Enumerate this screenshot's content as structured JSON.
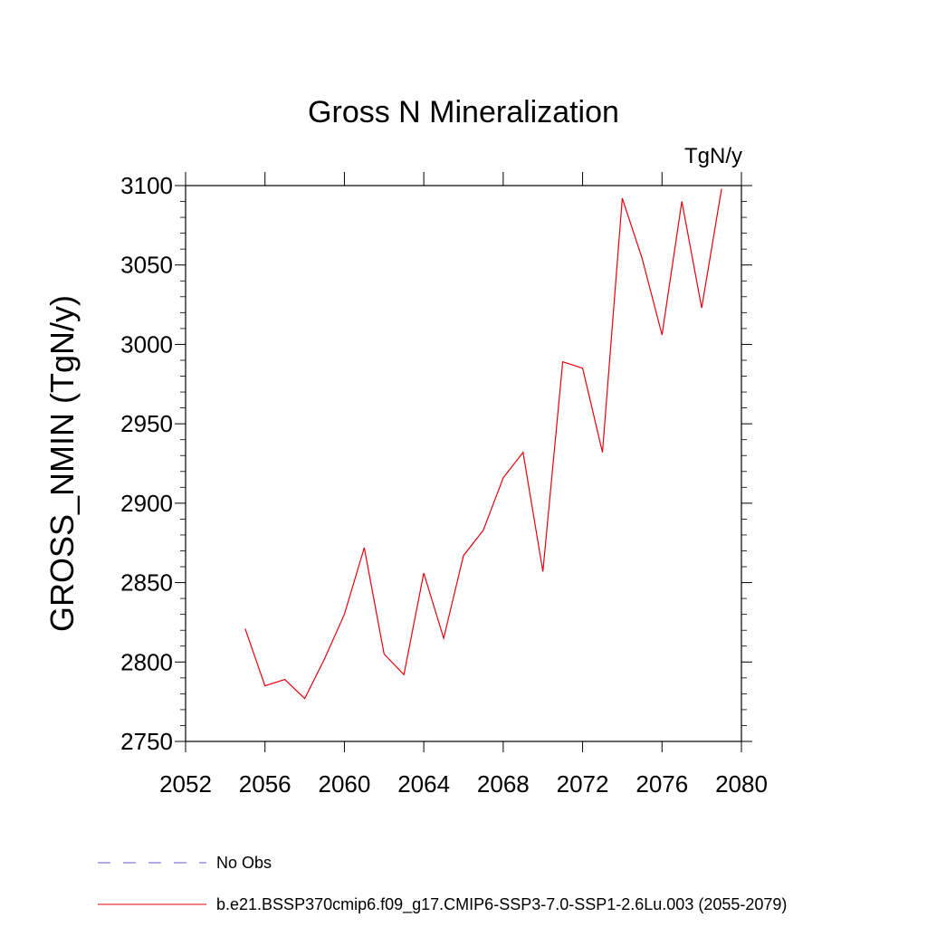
{
  "chart_data": {
    "type": "line",
    "title": "Gross N Mineralization",
    "units": "TgN/y",
    "xlabel": "",
    "ylabel": "GROSS_NMIN  (TgN/y)",
    "xlim": [
      2052,
      2080
    ],
    "ylim": [
      2750,
      3100
    ],
    "xticks": [
      2052,
      2056,
      2060,
      2064,
      2068,
      2072,
      2076,
      2080
    ],
    "yticks": [
      2750,
      2800,
      2850,
      2900,
      2950,
      3000,
      3050,
      3100
    ],
    "grid": false,
    "legend_position": "bottom-left",
    "series": [
      {
        "name": "b.e21.BSSP370cmip6.f09_g17.CMIP6-SSP3-7.0-SSP1-2.6Lu.003 (2055-2079)",
        "color": "#e8000b",
        "dash": "solid",
        "x": [
          2055,
          2056,
          2057,
          2058,
          2059,
          2060,
          2061,
          2062,
          2063,
          2064,
          2065,
          2066,
          2067,
          2068,
          2069,
          2070,
          2071,
          2072,
          2073,
          2074,
          2075,
          2076,
          2077,
          2078,
          2079
        ],
        "values": [
          2821,
          2785,
          2789,
          2777,
          2802,
          2830,
          2872,
          2805,
          2792,
          2856,
          2815,
          2867,
          2883,
          2916,
          2932,
          2857,
          2989,
          2985,
          2932,
          3092,
          3054,
          3006,
          3090,
          3023,
          3098
        ]
      },
      {
        "name": "No Obs",
        "color": "#6a5acd",
        "dash": "dashed",
        "x": [],
        "values": []
      }
    ]
  }
}
